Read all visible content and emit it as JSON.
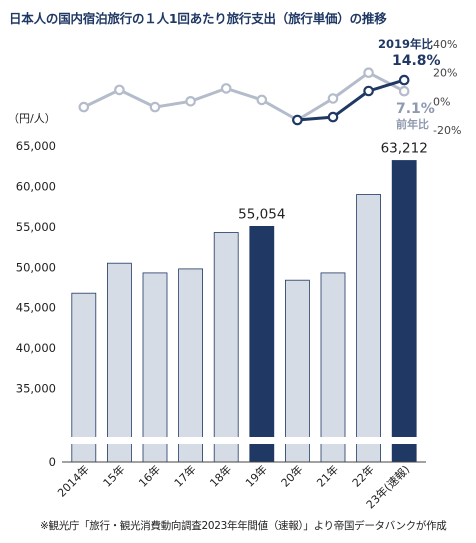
{
  "title": "日本人の国内宿泊旅行の１人1回あたり旅行支出（旅行単価）の推移",
  "footnote": "※観光庁「旅行・観光消費動向調査2023年年間値（速報）」より帝国データバンクが作成",
  "colors": {
    "bar_normal": "#d6dce6",
    "bar_highlight": "#1f3864",
    "bar_stroke": "#1f3864",
    "line_light": "#b4bccb",
    "line_dark": "#1f3864",
    "label_light": "#8f9ab0"
  },
  "chart_data": [
    {
      "type": "bar",
      "ylabel": "（円/人）",
      "categories": [
        "2014年",
        "15年",
        "16年",
        "17年",
        "18年",
        "19年",
        "20年",
        "21年",
        "22年",
        "23年(速報)"
      ],
      "values": [
        46800,
        50500,
        49300,
        49800,
        54300,
        55054,
        48400,
        49300,
        59000,
        63212
      ],
      "highlight": [
        false,
        false,
        false,
        false,
        false,
        true,
        false,
        false,
        false,
        true
      ],
      "data_labels": [
        {
          "index": 5,
          "text": "55,054"
        },
        {
          "index": 9,
          "text": "63,212"
        }
      ],
      "y_ticks": [
        "0",
        "35,000",
        "40,000",
        "45,000",
        "50,000",
        "55,000",
        "60,000",
        "65,000"
      ],
      "y_tick_values": [
        0,
        35000,
        40000,
        45000,
        50000,
        55000,
        60000,
        65000
      ],
      "ylim": [
        30000,
        65000
      ],
      "axis_break": true,
      "grid": false
    },
    {
      "type": "line",
      "y_ticks": [
        "40%",
        "20%",
        "0%",
        "-20%"
      ],
      "y_tick_values": [
        40,
        20,
        0,
        -20
      ],
      "ylim": [
        -20,
        40
      ],
      "series": [
        {
          "name": "前年比",
          "x": [
            "2014年",
            "15年",
            "16年",
            "17年",
            "18年",
            "19年",
            "20年",
            "21年",
            "22年",
            "23年(速報)"
          ],
          "values": [
            -4,
            8,
            -4,
            0,
            9,
            1,
            -13,
            2,
            20,
            7.1
          ]
        },
        {
          "name": "2019年比",
          "x": [
            "20年",
            "21年",
            "22年",
            "23年(速報)"
          ],
          "values": [
            -13,
            -11,
            7.2,
            14.8
          ]
        }
      ],
      "annotations": [
        {
          "label": "2019年比",
          "value": "14.8%"
        },
        {
          "label": "前年比",
          "value": "7.1%"
        }
      ]
    }
  ]
}
